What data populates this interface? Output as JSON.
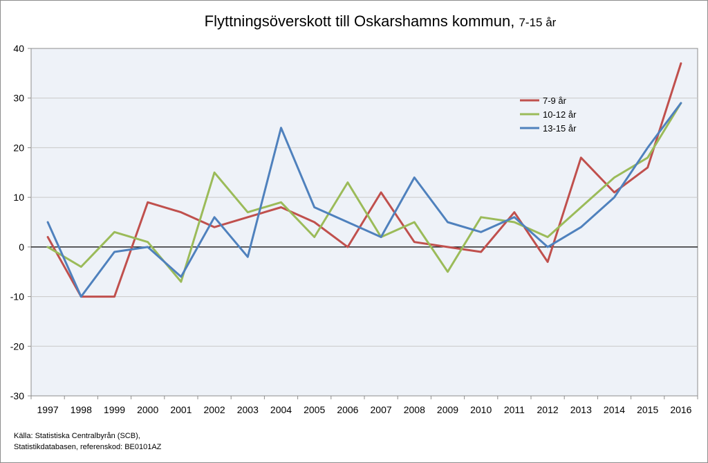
{
  "chart_data": {
    "type": "line",
    "title": "Flyttningsöverskott till Oskarshamns kommun,",
    "subtitle": "7-15 år",
    "xlabel": "",
    "ylabel": "",
    "x": [
      "1997",
      "1998",
      "1999",
      "2000",
      "2001",
      "2002",
      "2003",
      "2004",
      "2005",
      "2006",
      "2007",
      "2008",
      "2009",
      "2010",
      "2011",
      "2012",
      "2013",
      "2014",
      "2015",
      "2016"
    ],
    "ylim": [
      -30,
      40
    ],
    "yticks": [
      "40",
      "30",
      "20",
      "10",
      "0",
      "-10",
      "-20",
      "-30"
    ],
    "grid": true,
    "legend_position": "top-right",
    "series": [
      {
        "name": "7-9 år",
        "color": "#c0504d",
        "values": [
          2,
          -10,
          -10,
          9,
          7,
          4,
          6,
          8,
          5,
          0,
          11,
          1,
          0,
          -1,
          7,
          -3,
          18,
          11,
          16,
          37
        ]
      },
      {
        "name": "10-12 år",
        "color": "#9bbb59",
        "values": [
          0,
          -4,
          3,
          1,
          -7,
          15,
          7,
          9,
          2,
          13,
          2,
          5,
          -5,
          6,
          5,
          2,
          8,
          14,
          18,
          29
        ]
      },
      {
        "name": "13-15 år",
        "color": "#4f81bd",
        "values": [
          5,
          -10,
          -1,
          0,
          -6,
          6,
          -2,
          24,
          8,
          5,
          2,
          14,
          5,
          3,
          6,
          0,
          4,
          10,
          20,
          29
        ]
      }
    ]
  },
  "source": {
    "line1": "Källa: Statistiska Centralbyrån (SCB),",
    "line2": "Statistikdatabasen, referenskod: BE0101AZ"
  }
}
